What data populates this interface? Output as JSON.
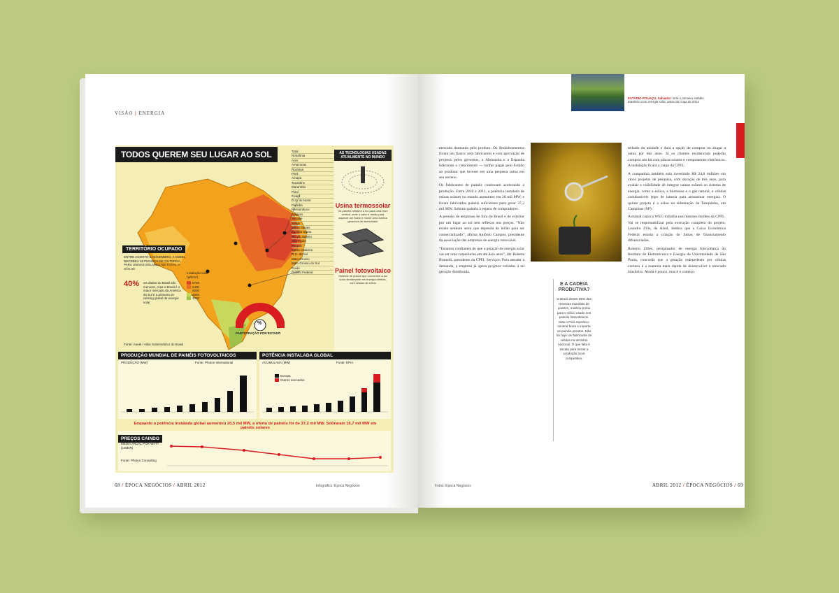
{
  "left": {
    "running_head": {
      "section": "VISÃO",
      "topic": "ENERGIA"
    },
    "folio": {
      "page": "68",
      "magazine": "ÉPOCA NEGÓCIOS",
      "issue": "ABRIL 2012"
    },
    "credit": "Infográfico: Época Negócios",
    "infographic": {
      "title": "TODOS QUEREM SEU LUGAR AO SOL",
      "states": [
        "Total",
        "Rondônia",
        "Acre",
        "Amazonas",
        "Roraima",
        "Pará",
        "Amapá",
        "Tocantins",
        "Maranhão",
        "Piauí",
        "Ceará",
        "R.G. do Norte",
        "Paraíba",
        "Pernambuco",
        "Alagoas",
        "Sergipe",
        "Bahia",
        "Minas Gerais",
        "Espírito Santo",
        "Rio de Janeiro",
        "São Paulo",
        "Paraná",
        "Santa Catarina",
        "R.G. do Sul",
        "Mato Grosso",
        "Mato Grosso do Sul",
        "Goiás",
        "Distrito Federal"
      ],
      "territory": {
        "title": "TERRITÓRIO OCUPADO",
        "text": "ENTRE AGOSTO E NOVEMBRO, A ANEEL RECEBEU 28 PEDIDOS DE OUTORGA PARA USINAS SOLARES NO TOTAL, A SÃO 29",
        "highlight": "40%",
        "note": "Os dados do Brasil são menores, mas o Brasil é o maior mercado da América do Sul e a primeira do ranking global de energia solar",
        "legend_title": "Irradiação solar (Wh/m²)",
        "legend": [
          "5700",
          "5400",
          "5000",
          "4500",
          "4000"
        ]
      },
      "participation": {
        "label": "PARTICIPAÇÃO POR ESTADO",
        "symbol": "%"
      },
      "source_map": "Fonte: Aneel / Atlas Solarimétrico do Brasil",
      "tech": {
        "header": "AS TECNOLOGIAS USADAS ATUALMENTE NO MUNDO",
        "thermo_title": "Usina termossolar",
        "thermo_text": "Os painéis refletem a luz para uma torre central, onde o calor é usado para aquecer um fluido e mover uma turbina geradora de eletricidade",
        "pv_title": "Painel fotovoltaico",
        "pv_text": "Sistema de placas que convertem a luz solar diretamente em energia elétrica, com células de silício"
      },
      "production_chart": {
        "title": "PRODUÇÃO MUNDIAL DE PAINÉIS FOTOVOLTAICOS",
        "unit": "PRODUÇÃO (MW)",
        "source": "Fonte: Photon International"
      },
      "capacity_chart": {
        "title": "POTÊNCIA INSTALADA GLOBAL",
        "unit": "ACUMULADA (MW)",
        "source": "Fonte: EPIA",
        "legend": [
          "Europa",
          "Outros mercados"
        ]
      },
      "summary": "Enquanto a potência instalada global aumentou 20,5 mil MW, a oferta de painéis foi de 37,2 mil MW. Sobraram 16,7 mil MW em painéis solares",
      "prices": {
        "title": "PREÇOS CAINDO",
        "unit": "MÉDIA ANUAL POR WATT (US$/W)",
        "source": "Fonte: Photon Consulting"
      }
    }
  },
  "right": {
    "folio": {
      "issue": "ABRIL 2012",
      "magazine": "ÉPOCA NEGÓCIOS",
      "page": "69"
    },
    "credit": "Fotos: Época Negócios",
    "thumb_caption": {
      "lead": "ESTÁDIO PITUAÇU, Salvador:",
      "text": "será o primeiro estádio brasileiro com energia solar, antes da Copa de 2014"
    },
    "sidebar": {
      "title": "E A CADEIA PRODUTIVA?",
      "text": "O Brasil detém 95% das reservas mundiais de quartzo, matéria-prima para o silício usado nos painéis fotovoltaicos. Mas o País exporta o mineral bruto e importa os painéis prontos. Não há hoje um fabricante de células no território nacional. O que falta é escala para tornar a produção local competitiva."
    },
    "col1": [
      "mercado demanda pelo produto. Os desdobramentos foram um fiasco: sem fabricantes e com aprovação de projetos pelos governos, a Alemanha e a Espanha lideraram o crescimento — tarifas pagas pelo Estado ao produtor que investe em uma pequena usina em seu terreno.",
      "Os fabricantes de painéis continuam acelerando a produção. Entre 2010 e 2011, a potência instalada de usinas solares no mundo aumentou em 20 mil MW, e foram fabricados painéis suficientes para gerar 37,2 mil MW. Sobram painéis à espera de compradores.",
      "A pressão de empresas de fora do Brasil e do exterior por um lugar ao sol tem reflexos nos preços. “Não existe nenhum setor que dependa do leilão para ser comercializado”, afirma Antônio Campos, presidente da associação das empresas de energia renovável.",
      "“Estamos confiantes de que a geração de energia solar vai ser uma coqueluche em até dois anos”, diz Rubens Brunelli, presidente da CPFL Serviços. Para atender à demanda, a empresa já opera projetos voltados à tal geração distribuída."
    ],
    "col2": [
      "telhado da unidade e dará a opção de comprar ou alugar a usina por dez anos. Já os clientes residenciais poderão comprar um kit com placas solares e componentes eletrônicos. A instalação ficará a cargo da CPFL.",
      "A companhia também está investindo R$ 24,8 milhões em cinco projetos de pesquisa, com duração de três anos, para avaliar a viabilidade de integrar usinas solares ao sistema de energia, como a eólica, a biomassa e o gás natural, e células combustíveis (tipo de bateria para armazenar energia). O quinto projeto é a usina na subestação de Tanquinho, em Campinas (SP).",
      "A estatal carioca WEG trabalha nos mesmos moldes da CPFL. Vai se responsabilizar pela execução completa do projeto. Leandro Zilis, da Alsol, lembra que a Caixa Econômica Federal estuda a criação de linhas de financiamento diferenciadas.",
      "Roberto Zilles, pesquisador de energia fotovoltaica do Instituto de Eletrotécnica e Energia da Universidade de São Paulo, concorda que a geração indepedente por células comuns é a maneira mais rápida de desenvolver o mercado brasileiro. Ainda é pouco, mas é o começo."
    ]
  },
  "colors": {
    "background": "#bccb81",
    "accent_red": "#d81d22",
    "map_orange": "#f2a21c",
    "map_red": "#d9442a",
    "map_green": "#9cc24a"
  }
}
